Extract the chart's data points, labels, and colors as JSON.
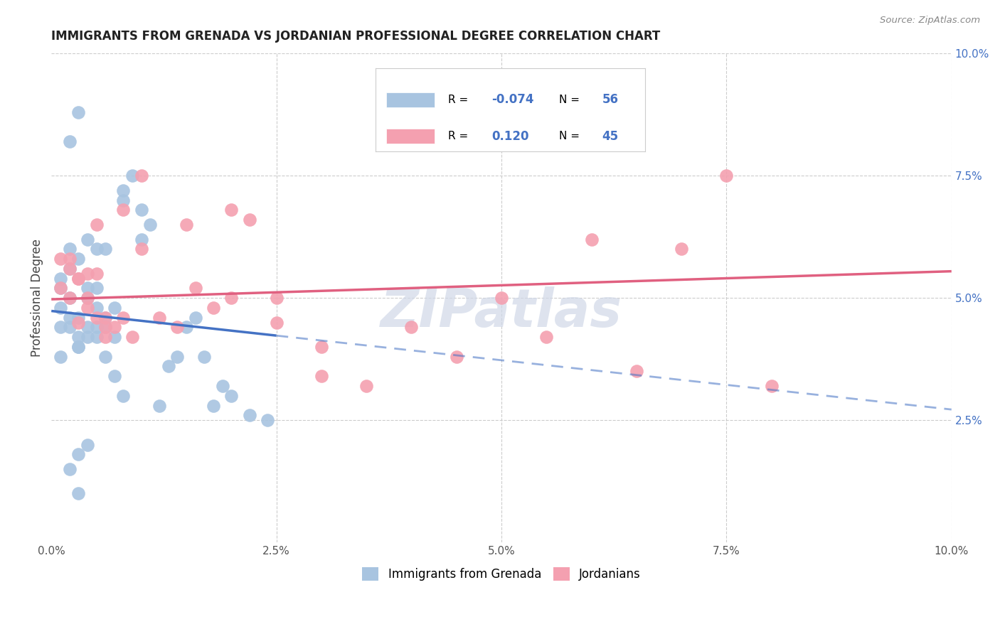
{
  "title": "IMMIGRANTS FROM GRENADA VS JORDANIAN PROFESSIONAL DEGREE CORRELATION CHART",
  "source": "Source: ZipAtlas.com",
  "ylabel": "Professional Degree",
  "r_grenada": -0.074,
  "n_grenada": 56,
  "r_jordan": 0.12,
  "n_jordan": 45,
  "color_grenada": "#a8c4e0",
  "color_jordan": "#f4a0b0",
  "line_color_grenada": "#4472c4",
  "line_color_jordan": "#e06080",
  "watermark": "ZIPatlas",
  "xlim": [
    0.0,
    0.1
  ],
  "ylim": [
    0.0,
    0.1
  ],
  "grenada_x": [
    0.001,
    0.001,
    0.001,
    0.001,
    0.002,
    0.002,
    0.002,
    0.002,
    0.003,
    0.003,
    0.003,
    0.003,
    0.004,
    0.004,
    0.004,
    0.004,
    0.005,
    0.005,
    0.005,
    0.005,
    0.006,
    0.006,
    0.006,
    0.007,
    0.007,
    0.008,
    0.008,
    0.009,
    0.01,
    0.01,
    0.011,
    0.012,
    0.013,
    0.014,
    0.015,
    0.016,
    0.017,
    0.018,
    0.019,
    0.02,
    0.022,
    0.024,
    0.001,
    0.002,
    0.003,
    0.002,
    0.003,
    0.004,
    0.005,
    0.006,
    0.007,
    0.008,
    0.003,
    0.004,
    0.002,
    0.003
  ],
  "grenada_y": [
    0.048,
    0.044,
    0.038,
    0.052,
    0.046,
    0.05,
    0.056,
    0.06,
    0.058,
    0.046,
    0.042,
    0.04,
    0.05,
    0.052,
    0.044,
    0.062,
    0.042,
    0.044,
    0.048,
    0.06,
    0.044,
    0.046,
    0.06,
    0.042,
    0.048,
    0.07,
    0.072,
    0.075,
    0.062,
    0.068,
    0.065,
    0.028,
    0.036,
    0.038,
    0.044,
    0.046,
    0.038,
    0.028,
    0.032,
    0.03,
    0.026,
    0.025,
    0.054,
    0.044,
    0.04,
    0.082,
    0.088,
    0.042,
    0.052,
    0.038,
    0.034,
    0.03,
    0.018,
    0.02,
    0.015,
    0.01
  ],
  "jordan_x": [
    0.001,
    0.001,
    0.002,
    0.002,
    0.003,
    0.003,
    0.004,
    0.004,
    0.005,
    0.005,
    0.006,
    0.006,
    0.007,
    0.008,
    0.009,
    0.01,
    0.012,
    0.014,
    0.016,
    0.018,
    0.02,
    0.022,
    0.025,
    0.03,
    0.035,
    0.04,
    0.045,
    0.05,
    0.055,
    0.06,
    0.065,
    0.07,
    0.075,
    0.08,
    0.002,
    0.003,
    0.004,
    0.005,
    0.006,
    0.008,
    0.01,
    0.015,
    0.02,
    0.025,
    0.03
  ],
  "jordan_y": [
    0.052,
    0.058,
    0.05,
    0.056,
    0.045,
    0.054,
    0.048,
    0.055,
    0.055,
    0.046,
    0.046,
    0.044,
    0.044,
    0.046,
    0.042,
    0.06,
    0.046,
    0.044,
    0.052,
    0.048,
    0.068,
    0.066,
    0.05,
    0.034,
    0.032,
    0.044,
    0.038,
    0.05,
    0.042,
    0.062,
    0.035,
    0.06,
    0.075,
    0.032,
    0.058,
    0.054,
    0.05,
    0.065,
    0.042,
    0.068,
    0.075,
    0.065,
    0.05,
    0.045,
    0.04
  ]
}
